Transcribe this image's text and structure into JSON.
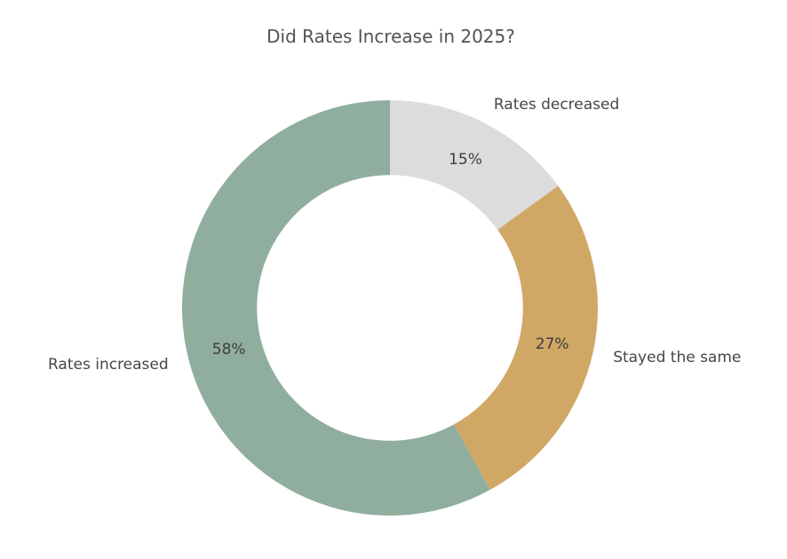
{
  "chart_data": {
    "type": "pie",
    "variant": "donut",
    "title": "Did Rates Increase in 2025?",
    "start_angle": 90,
    "direction": "clockwise",
    "inner_radius_ratio": 0.64,
    "pct_distance": 0.8,
    "label_distance": 1.1,
    "legend": "none",
    "background_color": "#ffffff",
    "title_color": "#535353",
    "label_color": "#464646",
    "pct_color": "#3d3d3d",
    "slices": [
      {
        "label": "Rates decreased",
        "value": 15,
        "pct_label": "15%",
        "color": "#dcdcdc"
      },
      {
        "label": "Stayed the same",
        "value": 27,
        "pct_label": "27%",
        "color": "#d1a765"
      },
      {
        "label": "Rates increased",
        "value": 58,
        "pct_label": "58%",
        "color": "#90ae9d"
      }
    ]
  }
}
